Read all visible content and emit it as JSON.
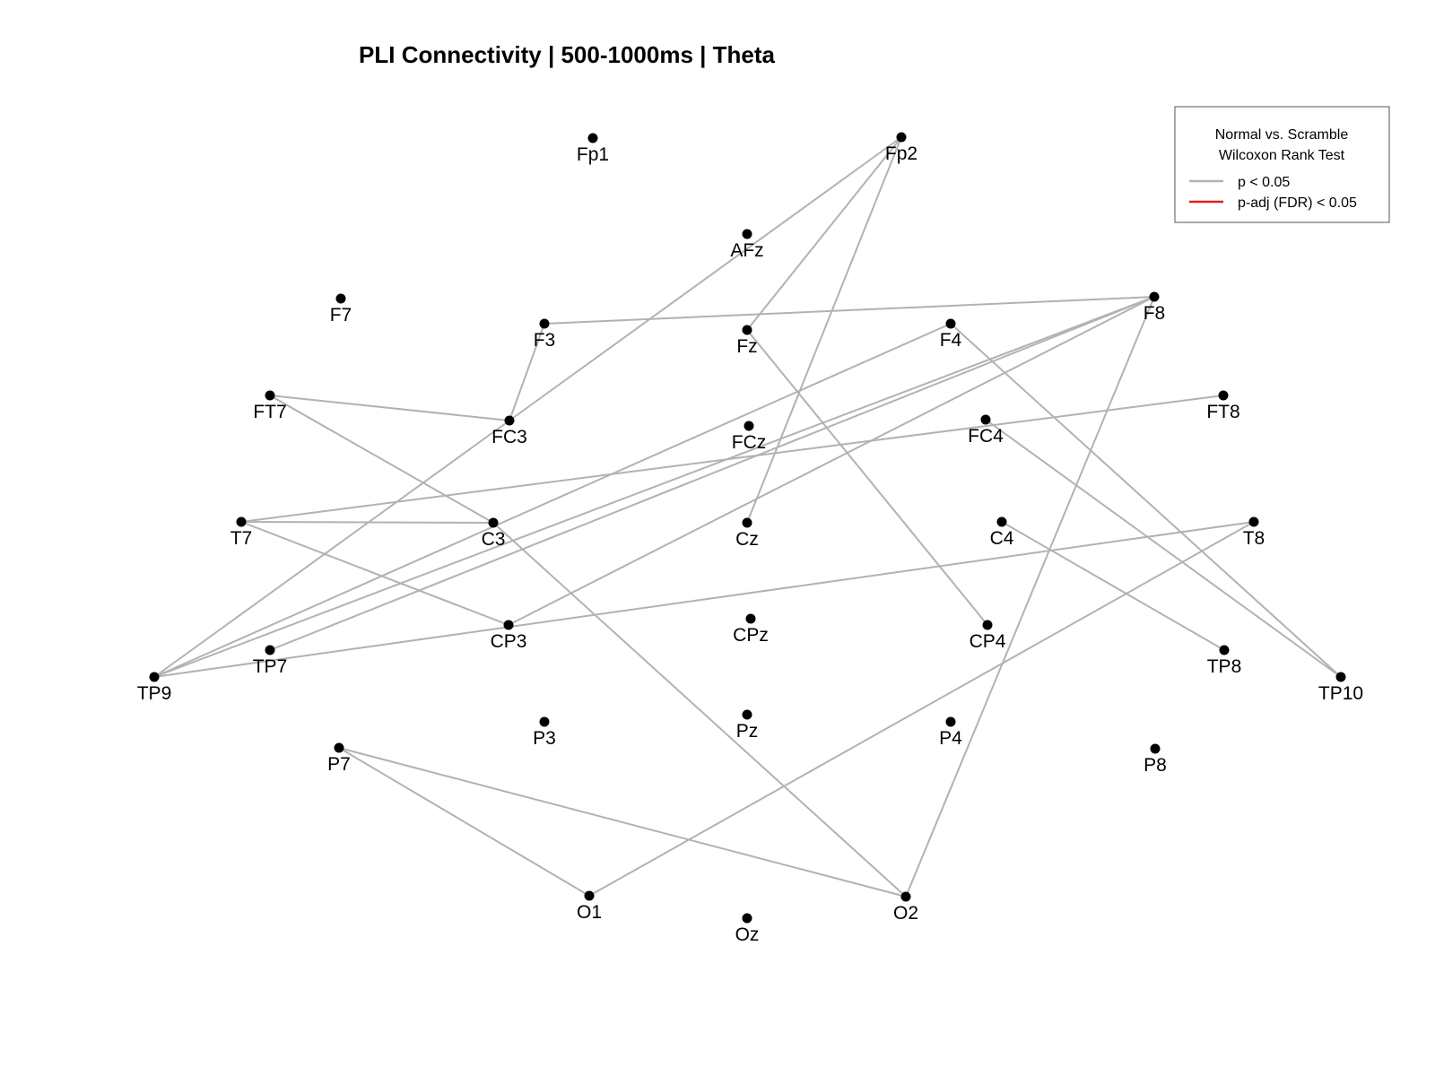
{
  "chart_data": {
    "type": "network",
    "title": "PLI Connectivity | 500-1000ms |  Theta",
    "electrodes": [
      "Fp1",
      "Fp2",
      "AFz",
      "F7",
      "F3",
      "Fz",
      "F4",
      "F8",
      "FT7",
      "FC3",
      "FCz",
      "FC4",
      "FT8",
      "T7",
      "C3",
      "Cz",
      "C4",
      "T8",
      "TP9",
      "TP7",
      "CP3",
      "CPz",
      "CP4",
      "TP8",
      "TP10",
      "P7",
      "P3",
      "Pz",
      "P4",
      "P8",
      "O1",
      "Oz",
      "O2"
    ],
    "edges": [
      {
        "from": "Fp2",
        "to": "FC3",
        "significance": "p < 0.05"
      },
      {
        "from": "Fp2",
        "to": "Fz",
        "significance": "p < 0.05"
      },
      {
        "from": "Fp2",
        "to": "Cz",
        "significance": "p < 0.05"
      },
      {
        "from": "F3",
        "to": "F8",
        "significance": "p < 0.05"
      },
      {
        "from": "F3",
        "to": "FC3",
        "significance": "p < 0.05"
      },
      {
        "from": "FC3",
        "to": "FT7",
        "significance": "p < 0.05"
      },
      {
        "from": "FC3",
        "to": "TP9",
        "significance": "p < 0.05"
      },
      {
        "from": "FT7",
        "to": "C3",
        "significance": "p < 0.05"
      },
      {
        "from": "F8",
        "to": "TP9",
        "significance": "p < 0.05"
      },
      {
        "from": "F8",
        "to": "TP7",
        "significance": "p < 0.05"
      },
      {
        "from": "F8",
        "to": "CP3",
        "significance": "p < 0.05"
      },
      {
        "from": "F8",
        "to": "O2",
        "significance": "p < 0.05"
      },
      {
        "from": "F4",
        "to": "TP9",
        "significance": "p < 0.05"
      },
      {
        "from": "F4",
        "to": "TP10",
        "significance": "p < 0.05"
      },
      {
        "from": "Fz",
        "to": "CP4",
        "significance": "p < 0.05"
      },
      {
        "from": "FT8",
        "to": "T7",
        "significance": "p < 0.05"
      },
      {
        "from": "FC4",
        "to": "TP10",
        "significance": "p < 0.05"
      },
      {
        "from": "T7",
        "to": "C3",
        "significance": "p < 0.05"
      },
      {
        "from": "T7",
        "to": "CP3",
        "significance": "p < 0.05"
      },
      {
        "from": "C3",
        "to": "O2",
        "significance": "p < 0.05"
      },
      {
        "from": "C4",
        "to": "TP8",
        "significance": "p < 0.05"
      },
      {
        "from": "T8",
        "to": "TP9",
        "significance": "p < 0.05"
      },
      {
        "from": "T8",
        "to": "O1",
        "significance": "p < 0.05"
      },
      {
        "from": "P7",
        "to": "O1",
        "significance": "p < 0.05"
      },
      {
        "from": "P7",
        "to": "O2",
        "significance": "p < 0.05"
      }
    ],
    "legend": {
      "title_line1": "Normal vs. Scramble",
      "title_line2": "Wilcoxon Rank Test",
      "position": "top-right",
      "entries": [
        {
          "label": "p < 0.05",
          "color": "#b2b2b2"
        },
        {
          "label": "p-adj (FDR) < 0.05",
          "color": "#e8191b"
        }
      ]
    },
    "colors": {
      "edge_uncorrected": "#b2b2b2",
      "edge_fdr": "#e8191b",
      "node": "#000000"
    }
  }
}
